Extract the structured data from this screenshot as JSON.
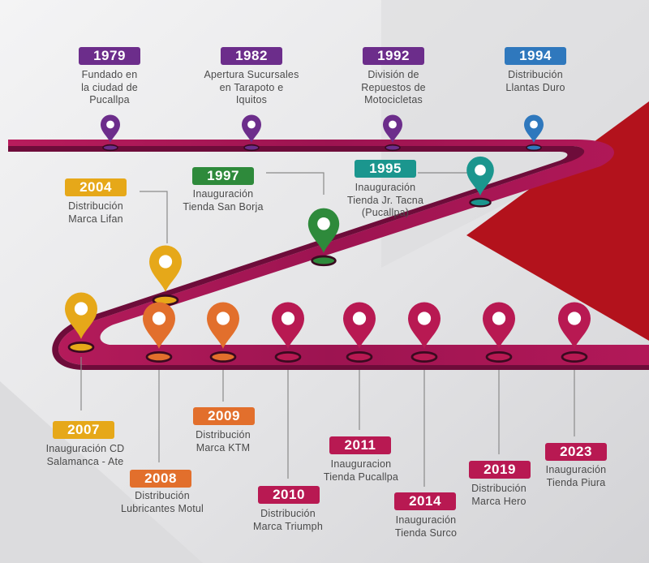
{
  "colors": {
    "road": "#a11654",
    "road_dark": "#7d0f41",
    "red_bg": "#b3121c",
    "purple": "#6c2d8b",
    "blue": "#2f78bd",
    "teal": "#1b968e",
    "green": "#2e8a3b",
    "yellow": "#e6a819",
    "orange": "#e26f2c",
    "crimson": "#b81952"
  },
  "milestones": [
    {
      "year": "1979",
      "text": "Fundado en\nla ciudad de\nPucallpa",
      "color": "purple"
    },
    {
      "year": "1982",
      "text": "Apertura Sucursales\nen Tarapoto e\nIquitos",
      "color": "purple"
    },
    {
      "year": "1992",
      "text": "División de\nRepuestos de\nMotocicletas",
      "color": "purple"
    },
    {
      "year": "1994",
      "text": "Distribución\nLlantas Duro",
      "color": "blue"
    },
    {
      "year": "1995",
      "text": "Inauguración\nTienda Jr. Tacna\n(Pucallpa)",
      "color": "teal"
    },
    {
      "year": "1997",
      "text": "Inauguración\nTienda San Borja",
      "color": "green"
    },
    {
      "year": "2004",
      "text": "Distribución\nMarca Lifan",
      "color": "yellow"
    },
    {
      "year": "2007",
      "text": "Inauguración CD\nSalamanca - Ate",
      "color": "yellow"
    },
    {
      "year": "2008",
      "text": "Distribución\nLubricantes Motul",
      "color": "orange"
    },
    {
      "year": "2009",
      "text": "Distribución\nMarca KTM",
      "color": "orange"
    },
    {
      "year": "2010",
      "text": "Distribución\nMarca Triumph",
      "color": "crimson"
    },
    {
      "year": "2011",
      "text": "Inauguracion\nTienda Pucallpa",
      "color": "crimson"
    },
    {
      "year": "2014",
      "text": "Inauguración\nTienda Surco",
      "color": "crimson"
    },
    {
      "year": "2019",
      "text": "Distribución\nMarca Hero",
      "color": "crimson"
    },
    {
      "year": "2023",
      "text": "Inauguración\nTienda Piura",
      "color": "crimson"
    }
  ]
}
